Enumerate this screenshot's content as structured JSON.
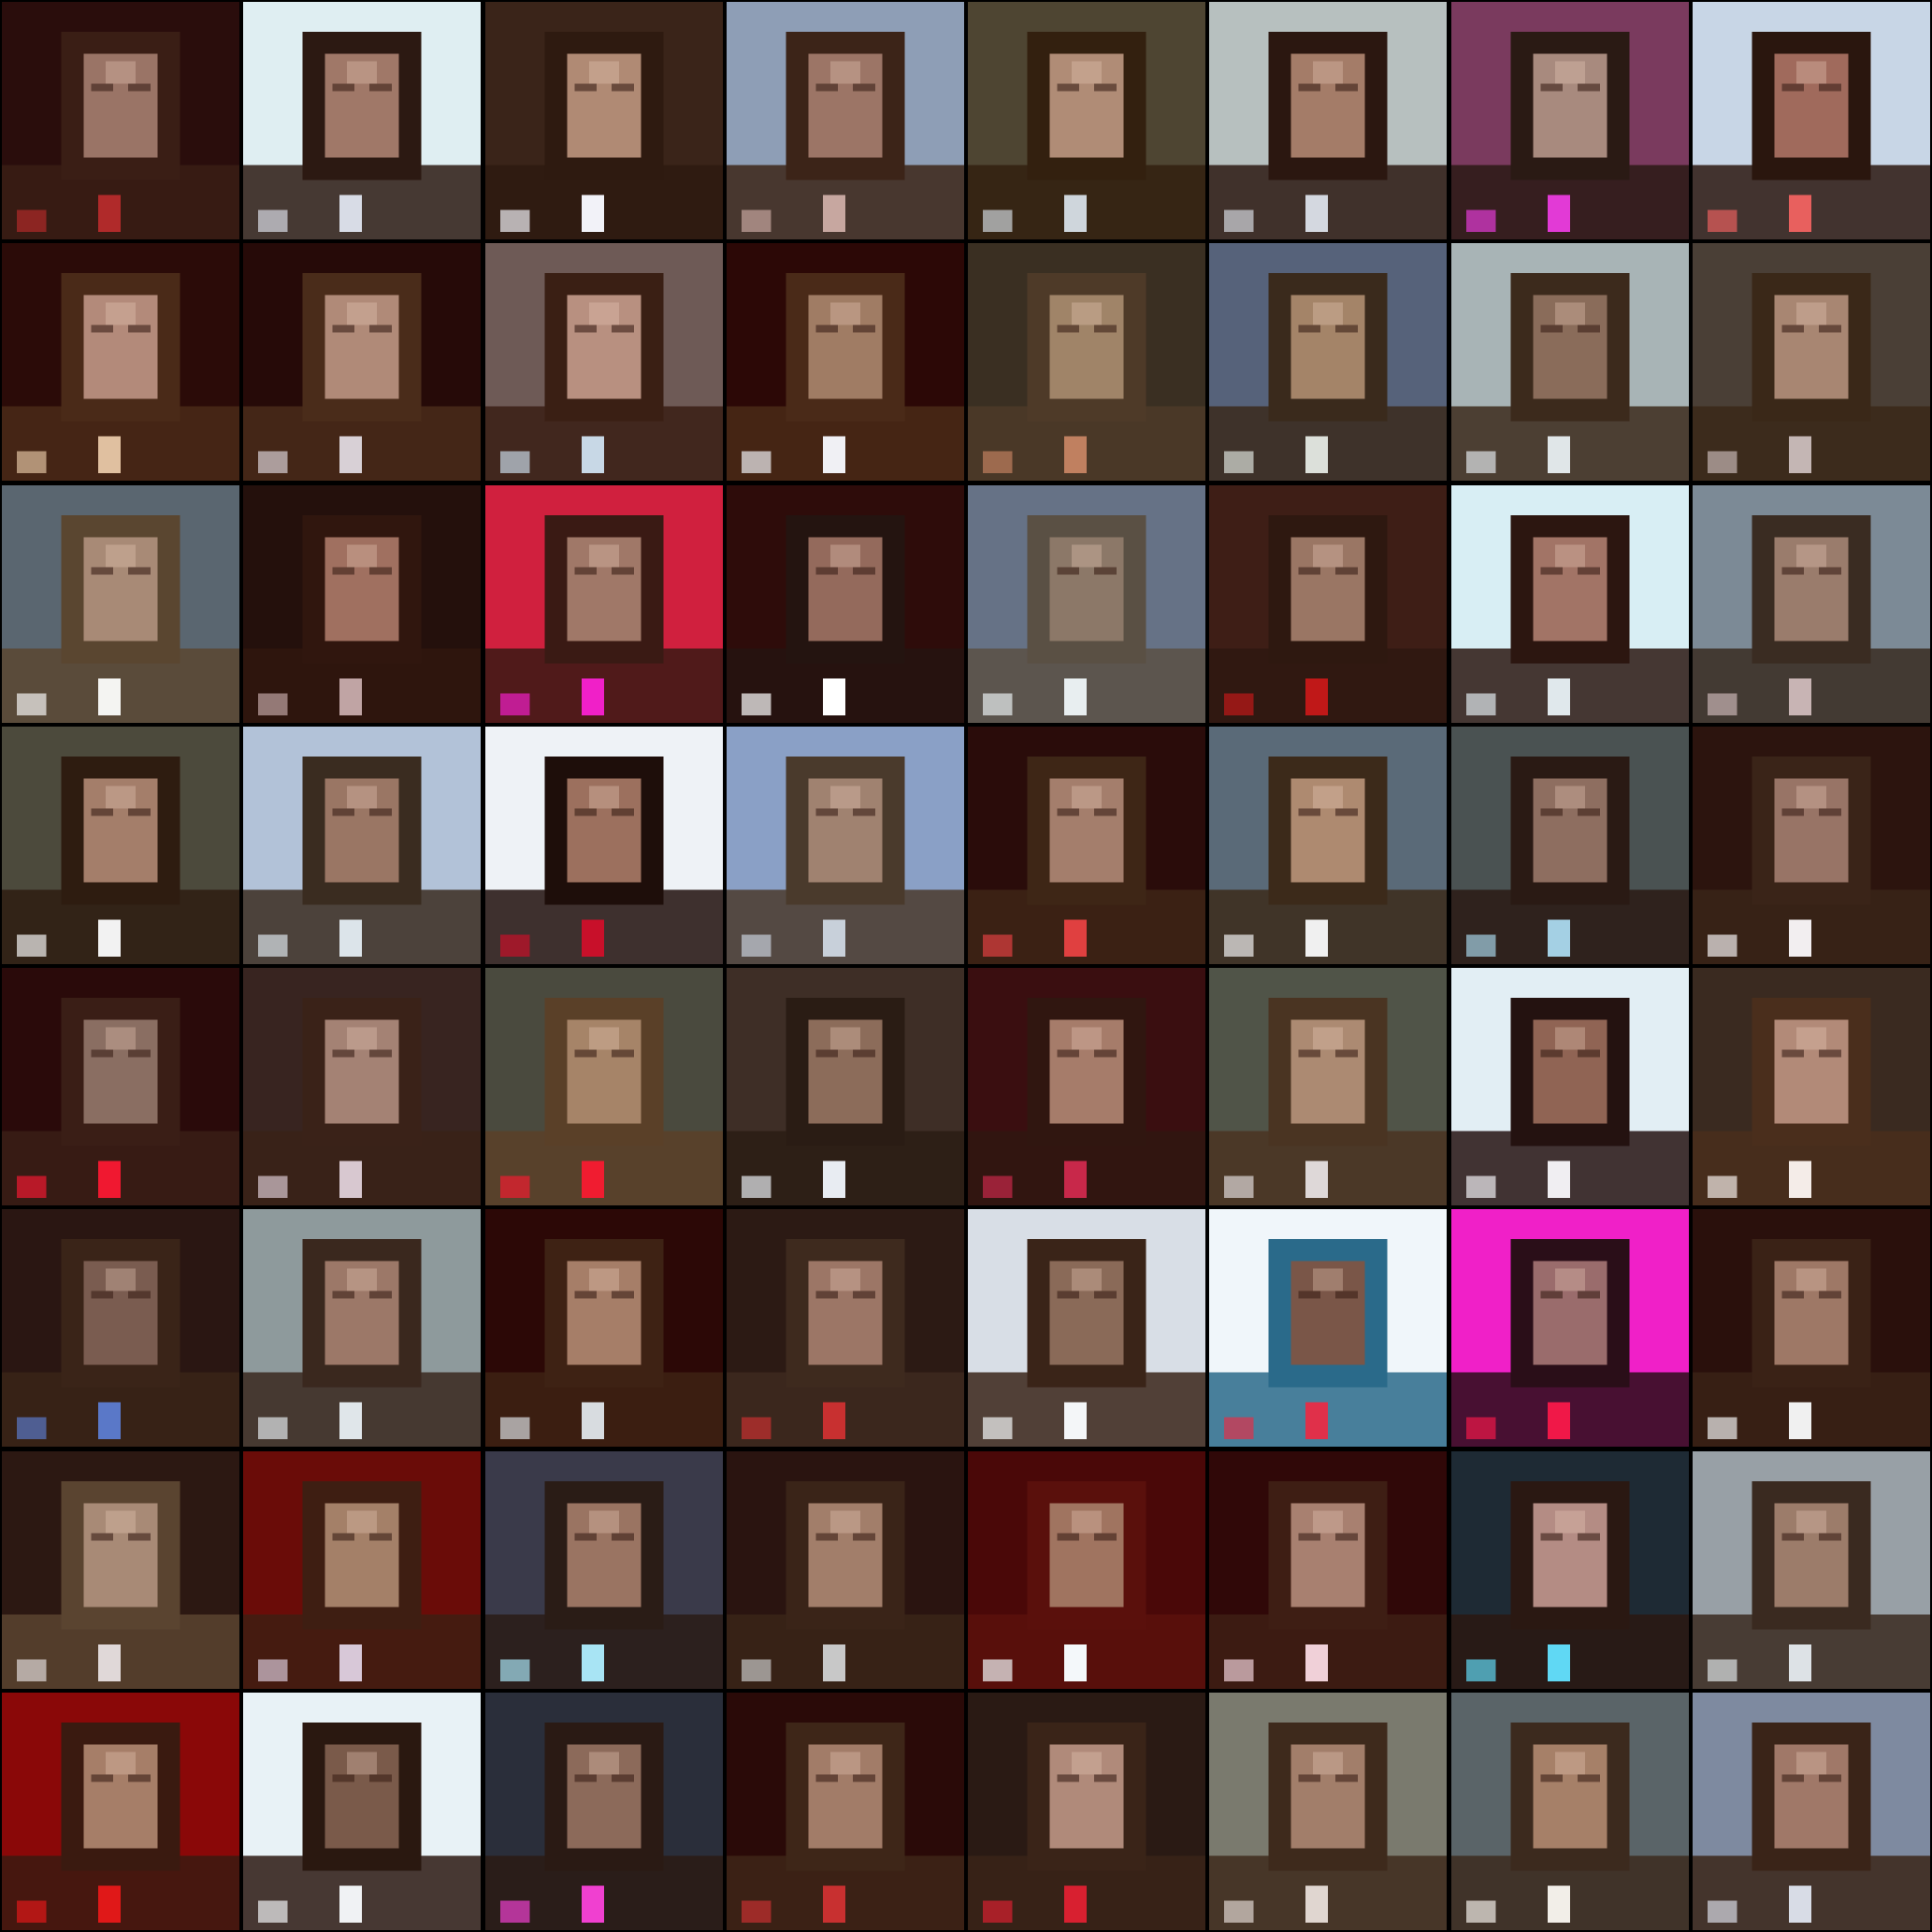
{
  "grid": {
    "rows": 8,
    "cols": 8,
    "background_color": "#000000",
    "tiles": [
      {
        "bg": "#2a0d0c",
        "face": "#9a7466",
        "hair": "#3a1e15",
        "accent": "#b02a2a"
      },
      {
        "bg": "#dfeef2",
        "face": "#a07868",
        "hair": "#2c1912",
        "accent": "#d8dce6"
      },
      {
        "bg": "#3a2419",
        "face": "#b08a74",
        "hair": "#2e1a10",
        "accent": "#f2f2f8"
      },
      {
        "bg": "#8e9eb6",
        "face": "#9c7566",
        "hair": "#3c2418",
        "accent": "#c7a7a0"
      },
      {
        "bg": "#4e4532",
        "face": "#b08c76",
        "hair": "#33200f",
        "accent": "#cfd6dc"
      },
      {
        "bg": "#b7c0bf",
        "face": "#a47c68",
        "hair": "#2b1710",
        "accent": "#d4d8e0"
      },
      {
        "bg": "#7a3a5e",
        "face": "#a88a7e",
        "hair": "#2a1a14",
        "accent": "#e23ad6"
      },
      {
        "bg": "#c8d6e6",
        "face": "#a06a5c",
        "hair": "#2a160e",
        "accent": "#e8605e"
      },
      {
        "bg": "#2b0b08",
        "face": "#b38a7a",
        "hair": "#4a2a18",
        "accent": "#e0c0a0"
      },
      {
        "bg": "#260a08",
        "face": "#b08a78",
        "hair": "#4a2c1a",
        "accent": "#d8d0d6"
      },
      {
        "bg": "#6e5a56",
        "face": "#b89080",
        "hair": "#3a1f14",
        "accent": "#c8d8e6"
      },
      {
        "bg": "#2c0806",
        "face": "#a07c64",
        "hair": "#4a2a18",
        "accent": "#f0f0f4"
      },
      {
        "bg": "#3a2f22",
        "face": "#a08468",
        "hair": "#4e3a28",
        "accent": "#c08060"
      },
      {
        "bg": "#56627a",
        "face": "#a48468",
        "hair": "#3a2a1c",
        "accent": "#dce0da"
      },
      {
        "bg": "#a8b4b6",
        "face": "#8a6c5a",
        "hair": "#3c2a1c",
        "accent": "#e0e6e8"
      },
      {
        "bg": "#4a3f36",
        "face": "#a88672",
        "hair": "#3a2818",
        "accent": "#c4b6b4"
      },
      {
        "bg": "#5a6670",
        "face": "#a88a76",
        "hair": "#5a4630",
        "accent": "#f4f4f2"
      },
      {
        "bg": "#24100c",
        "face": "#a07060",
        "hair": "#30160e",
        "accent": "#c0a4a4"
      },
      {
        "bg": "#d0203e",
        "face": "#a07868",
        "hair": "#3a1a14",
        "accent": "#f020c8"
      },
      {
        "bg": "#2e0c0a",
        "face": "#946a5c",
        "hair": "#241410",
        "accent": "#ffffff"
      },
      {
        "bg": "#667286",
        "face": "#8c7868",
        "hair": "#5a5044",
        "accent": "#e8eef0"
      },
      {
        "bg": "#3e1e16",
        "face": "#9a7664",
        "hair": "#2e1810",
        "accent": "#c01818"
      },
      {
        "bg": "#d8eef4",
        "face": "#a27466",
        "hair": "#2c1610",
        "accent": "#e0e8ec"
      },
      {
        "bg": "#7c8a96",
        "face": "#9a7c6c",
        "hair": "#3a2c22",
        "accent": "#c8b4b4"
      },
      {
        "bg": "#4c4a3c",
        "face": "#a47e6a",
        "hair": "#2e1c10",
        "accent": "#f2f2f2"
      },
      {
        "bg": "#b2c2d8",
        "face": "#9a7664",
        "hair": "#3a2c20",
        "accent": "#dce4ea"
      },
      {
        "bg": "#eef2f6",
        "face": "#9c705e",
        "hair": "#1e0e0a",
        "accent": "#c8102a"
      },
      {
        "bg": "#8aa0c6",
        "face": "#a08270",
        "hair": "#4a3a2c",
        "accent": "#c8d0da"
      },
      {
        "bg": "#2a0c0a",
        "face": "#a47e6c",
        "hair": "#3e2616",
        "accent": "#e04040"
      },
      {
        "bg": "#5a6a78",
        "face": "#ae8a70",
        "hair": "#3c2a1a",
        "accent": "#f0f0f0"
      },
      {
        "bg": "#4a5252",
        "face": "#8e6e60",
        "hair": "#2a1a14",
        "accent": "#a4d0e4"
      },
      {
        "bg": "#2c140e",
        "face": "#987466",
        "hair": "#3a2418",
        "accent": "#f2eef0"
      },
      {
        "bg": "#2a0a0a",
        "face": "#8a6e62",
        "hair": "#3a1e16",
        "accent": "#f01830"
      },
      {
        "bg": "#382420",
        "face": "#a48274",
        "hair": "#3a2218",
        "accent": "#d8c8d0"
      },
      {
        "bg": "#4a4a3e",
        "face": "#a68468",
        "hair": "#5a4028",
        "accent": "#f01c30"
      },
      {
        "bg": "#3e2e26",
        "face": "#8c6c5a",
        "hair": "#2a1c14",
        "accent": "#e8ecf2"
      },
      {
        "bg": "#3a0e10",
        "face": "#a67c6a",
        "hair": "#301610",
        "accent": "#c8284a"
      },
      {
        "bg": "#505448",
        "face": "#ac8a72",
        "hair": "#4a3422",
        "accent": "#ded8d8"
      },
      {
        "bg": "#e2eef4",
        "face": "#906454",
        "hair": "#241210",
        "accent": "#f0eef2"
      },
      {
        "bg": "#3a2a20",
        "face": "#b28a78",
        "hair": "#4a2e1c",
        "accent": "#f4ece8"
      },
      {
        "bg": "#2a1612",
        "face": "#7a5c50",
        "hair": "#3a2418",
        "accent": "#5a78c8"
      },
      {
        "bg": "#8e9a9c",
        "face": "#9c7868",
        "hair": "#3a281e",
        "accent": "#e0e6ea"
      },
      {
        "bg": "#2c0806",
        "face": "#a67e68",
        "hair": "#3e2214",
        "accent": "#d8dce0"
      },
      {
        "bg": "#2c1a14",
        "face": "#9c7666",
        "hair": "#3e2a1e",
        "accent": "#c83030"
      },
      {
        "bg": "#d8dee6",
        "face": "#8a6a58",
        "hair": "#3a2418",
        "accent": "#f4f6f8"
      },
      {
        "bg": "#f0f6fa",
        "face": "#7a5648",
        "hair": "#2a6a8a",
        "accent": "#e0304a"
      },
      {
        "bg": "#f020c8",
        "face": "#9a6c6c",
        "hair": "#2a0e18",
        "accent": "#f01848"
      },
      {
        "bg": "#2a100c",
        "face": "#9e7866",
        "hair": "#3a2216",
        "accent": "#f0f0f0"
      },
      {
        "bg": "#2c1812",
        "face": "#a88a76",
        "hair": "#5a4430",
        "accent": "#e0d8d8"
      },
      {
        "bg": "#6a0c08",
        "face": "#a48068",
        "hair": "#3e1e12",
        "accent": "#d8c8d8"
      },
      {
        "bg": "#3a3a4a",
        "face": "#9a7462",
        "hair": "#2a1c16",
        "accent": "#a8e4f4"
      },
      {
        "bg": "#2a1410",
        "face": "#a27e6a",
        "hair": "#3a2418",
        "accent": "#c8c8c8"
      },
      {
        "bg": "#4a0808",
        "face": "#a07460",
        "hair": "#5a100c",
        "accent": "#f4f8fa"
      },
      {
        "bg": "#300808",
        "face": "#a88070",
        "hair": "#3e1e14",
        "accent": "#f0d0d8"
      },
      {
        "bg": "#1e2a34",
        "face": "#b48c84",
        "hair": "#2a1812",
        "accent": "#60d8f4"
      },
      {
        "bg": "#98a0a6",
        "face": "#9c7c6a",
        "hair": "#3a2a20",
        "accent": "#dde2e6"
      },
      {
        "bg": "#8a0808",
        "face": "#a67e68",
        "hair": "#3a1a10",
        "accent": "#e01818"
      },
      {
        "bg": "#e8f2f6",
        "face": "#7a5a4a",
        "hair": "#2a1810",
        "accent": "#f0f2f4"
      },
      {
        "bg": "#2a2e3a",
        "face": "#8c6a5a",
        "hair": "#2a1a14",
        "accent": "#f040d0"
      },
      {
        "bg": "#2a0a08",
        "face": "#a27c68",
        "hair": "#3e2618",
        "accent": "#c83030"
      },
      {
        "bg": "#2a1a14",
        "face": "#b08a7a",
        "hair": "#3a2418",
        "accent": "#d82030"
      },
      {
        "bg": "#7a7a6e",
        "face": "#a27e6a",
        "hair": "#3e2a1c",
        "accent": "#e0d6d0"
      },
      {
        "bg": "#5a6468",
        "face": "#a68068",
        "hair": "#3c2a1e",
        "accent": "#f2eee8"
      },
      {
        "bg": "#7e8aa0",
        "face": "#a07868",
        "hair": "#3a2418",
        "accent": "#d8dce6"
      }
    ]
  }
}
